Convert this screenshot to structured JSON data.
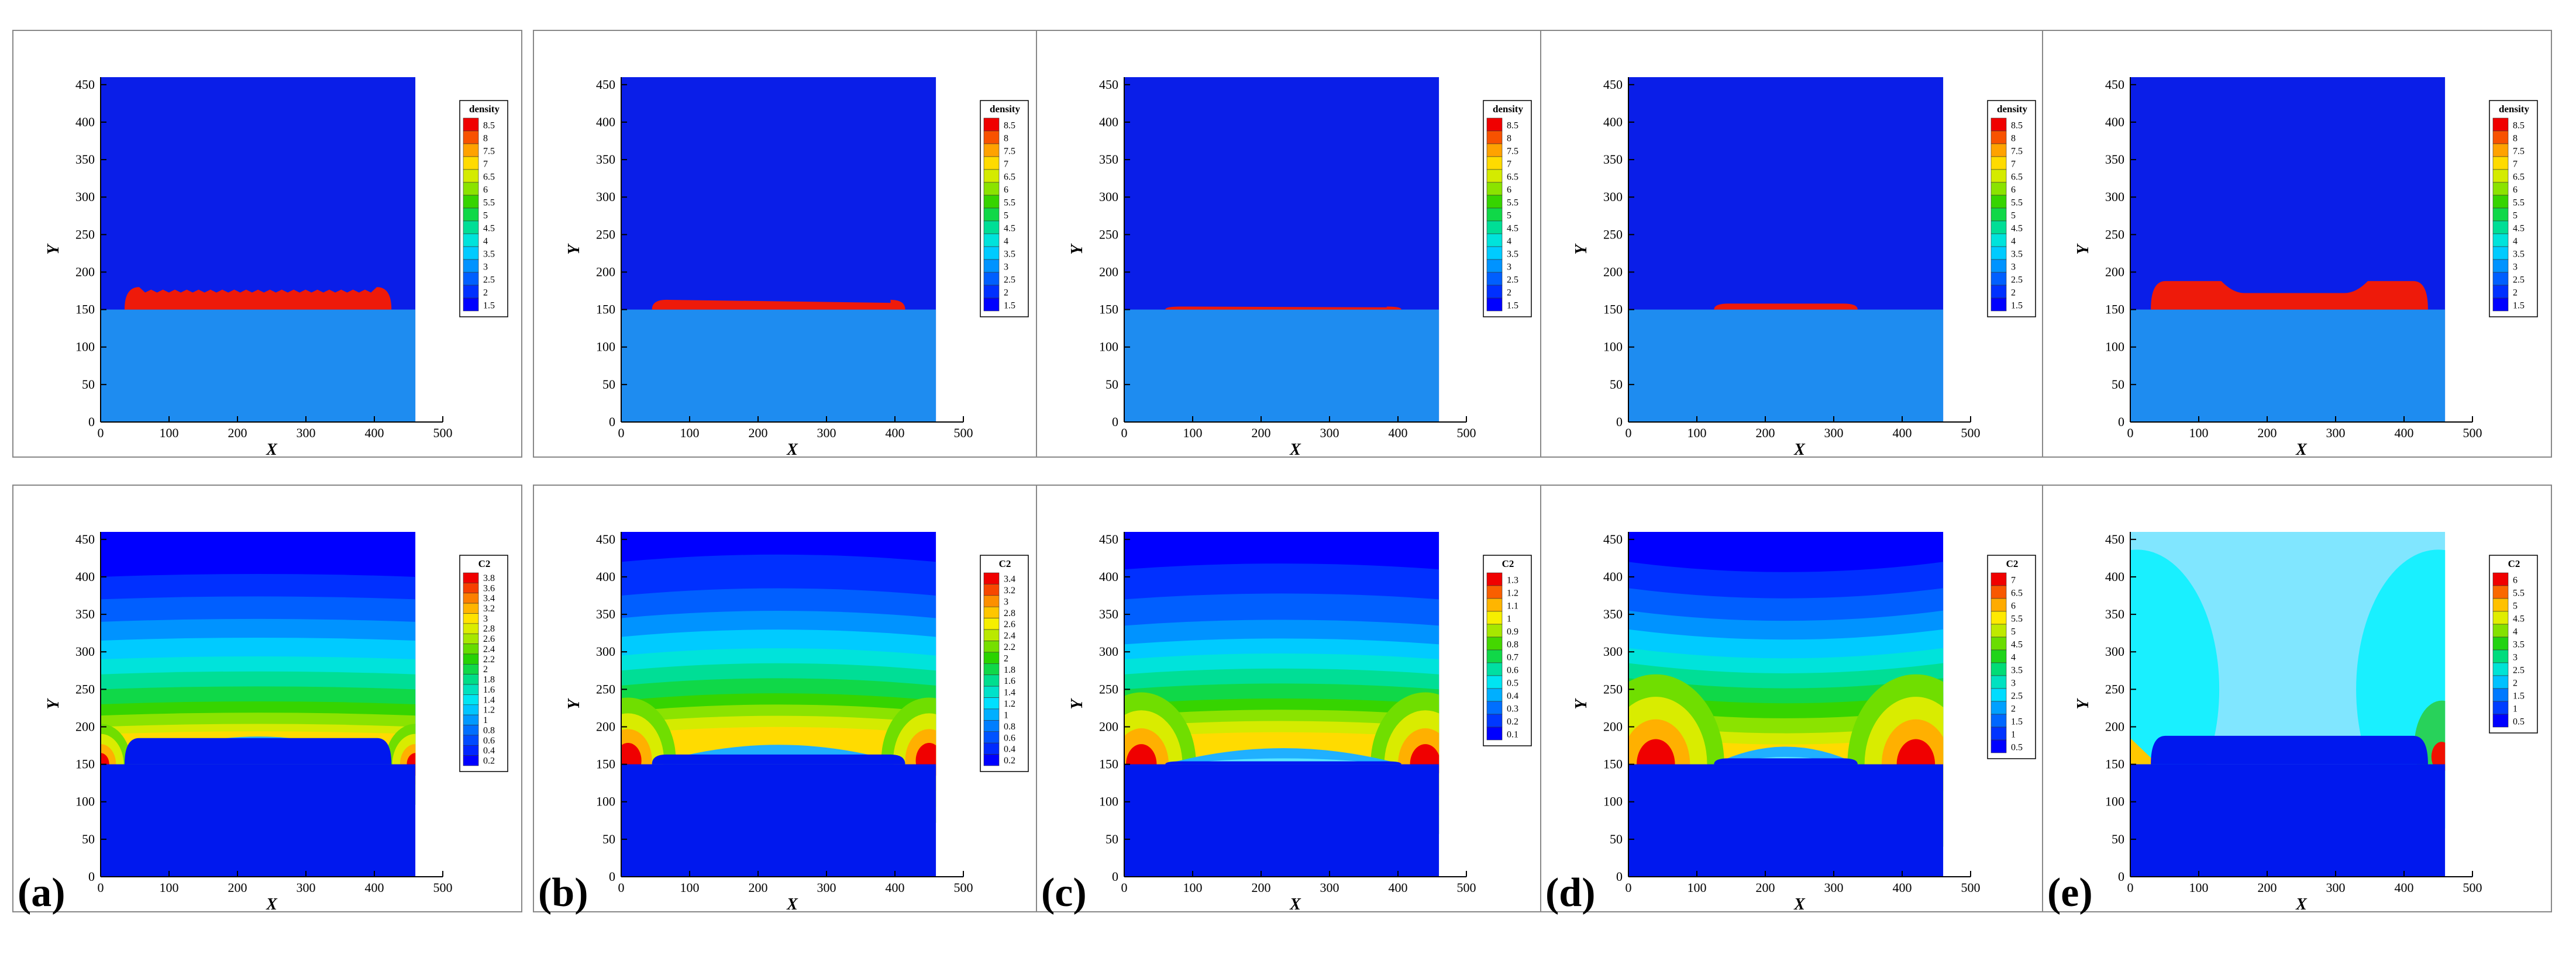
{
  "figure": {
    "panel_labels": [
      "(a)",
      "(b)",
      "(c)",
      "(d)",
      "(e)"
    ]
  },
  "chart_data": [
    {
      "type": "heatmap",
      "variable": "density",
      "panel": "a-top",
      "xlabel": "X",
      "ylabel": "Y",
      "xlim": [
        0,
        500
      ],
      "ylim": [
        0,
        460
      ],
      "domain_x": [
        0,
        460
      ],
      "xticks": [
        0,
        100,
        200,
        300,
        400,
        500
      ],
      "yticks": [
        0,
        50,
        100,
        150,
        200,
        250,
        300,
        350,
        400,
        450
      ],
      "legend_title": "density",
      "legend_levels": [
        8.5,
        8,
        7.5,
        7,
        6.5,
        6,
        5.5,
        5,
        4.5,
        4,
        3.5,
        3,
        2.5,
        2,
        1.5
      ],
      "interface_y": 150,
      "droplet": {
        "x_start": 35,
        "x_end": 425,
        "top_y": 175,
        "edge_y": 180,
        "rough": true
      }
    },
    {
      "type": "heatmap",
      "variable": "density",
      "panel": "b-top",
      "xlabel": "X",
      "ylabel": "Y",
      "xlim": [
        0,
        500
      ],
      "ylim": [
        0,
        460
      ],
      "domain_x": [
        0,
        460
      ],
      "xticks": [
        0,
        100,
        200,
        300,
        400,
        500
      ],
      "yticks": [
        0,
        50,
        100,
        150,
        200,
        250,
        300,
        350,
        400,
        450
      ],
      "legend_title": "density",
      "legend_levels": [
        8.5,
        8,
        7.5,
        7,
        6.5,
        6,
        5.5,
        5,
        4.5,
        4,
        3.5,
        3,
        2.5,
        2,
        1.5
      ],
      "interface_y": 150,
      "droplet": {
        "x_start": 45,
        "x_end": 415,
        "top_y": 159,
        "edge_y": 163,
        "rough": false
      }
    },
    {
      "type": "heatmap",
      "variable": "density",
      "panel": "c-top",
      "xlabel": "X",
      "ylabel": "Y",
      "xlim": [
        0,
        500
      ],
      "ylim": [
        0,
        460
      ],
      "domain_x": [
        0,
        460
      ],
      "xticks": [
        0,
        100,
        200,
        300,
        400,
        500
      ],
      "yticks": [
        0,
        50,
        100,
        150,
        200,
        250,
        300,
        350,
        400,
        450
      ],
      "legend_title": "density",
      "legend_levels": [
        8.5,
        8,
        7.5,
        7,
        6.5,
        6,
        5.5,
        5,
        4.5,
        4,
        3.5,
        3,
        2.5,
        2,
        1.5
      ],
      "interface_y": 150,
      "droplet": {
        "x_start": 60,
        "x_end": 405,
        "top_y": 153,
        "edge_y": 154,
        "rough": false
      }
    },
    {
      "type": "heatmap",
      "variable": "density",
      "panel": "d-top",
      "xlabel": "X",
      "ylabel": "Y",
      "xlim": [
        0,
        500
      ],
      "ylim": [
        0,
        460
      ],
      "domain_x": [
        0,
        460
      ],
      "xticks": [
        0,
        100,
        200,
        300,
        400,
        500
      ],
      "yticks": [
        0,
        50,
        100,
        150,
        200,
        250,
        300,
        350,
        400,
        450
      ],
      "legend_title": "density",
      "legend_levels": [
        8.5,
        8,
        7.5,
        7,
        6.5,
        6,
        5.5,
        5,
        4.5,
        4,
        3.5,
        3,
        2.5,
        2,
        1.5
      ],
      "interface_y": 150,
      "droplet": {
        "x_start": 125,
        "x_end": 335,
        "top_y": 158,
        "edge_y": 158,
        "rough": false
      }
    },
    {
      "type": "heatmap",
      "variable": "density",
      "panel": "e-top",
      "xlabel": "X",
      "ylabel": "Y",
      "xlim": [
        0,
        500
      ],
      "ylim": [
        0,
        460
      ],
      "domain_x": [
        0,
        460
      ],
      "xticks": [
        0,
        100,
        200,
        300,
        400,
        500
      ],
      "yticks": [
        0,
        50,
        100,
        150,
        200,
        250,
        300,
        350,
        400,
        450
      ],
      "legend_title": "density",
      "legend_levels": [
        8.5,
        8,
        7.5,
        7,
        6.5,
        6,
        5.5,
        5,
        4.5,
        4,
        3.5,
        3,
        2.5,
        2,
        1.5
      ],
      "interface_y": 150,
      "droplet": {
        "x_start": 30,
        "x_end": 435,
        "top_y": 172,
        "edge_y": 188,
        "rough": false,
        "bulges": true
      }
    },
    {
      "type": "heatmap",
      "variable": "C2",
      "panel": "a-bottom",
      "xlabel": "X",
      "ylabel": "Y",
      "xlim": [
        0,
        500
      ],
      "ylim": [
        0,
        460
      ],
      "domain_x": [
        0,
        460
      ],
      "xticks": [
        0,
        100,
        200,
        300,
        400,
        500
      ],
      "yticks": [
        0,
        50,
        100,
        150,
        200,
        250,
        300,
        350,
        400,
        450
      ],
      "legend_title": "C2",
      "legend_levels": [
        3.8,
        3.6,
        3.4,
        3.2,
        3,
        2.8,
        2.6,
        2.4,
        2.2,
        2,
        1.8,
        1.6,
        1.4,
        1.2,
        1,
        0.8,
        0.6,
        0.4,
        0.2
      ],
      "field": {
        "band_ys": [
          400,
          370,
          340,
          315,
          290,
          270,
          250,
          230,
          215,
          200,
          190,
          180
        ],
        "hump": 10,
        "hot_spots": [
          [
            0,
            150
          ],
          [
            460,
            150
          ]
        ],
        "hot_radius": 45,
        "dip_x": [
          35,
          425
        ],
        "dip_y": 185
      }
    },
    {
      "type": "heatmap",
      "variable": "C2",
      "panel": "b-bottom",
      "xlabel": "X",
      "ylabel": "Y",
      "xlim": [
        0,
        500
      ],
      "ylim": [
        0,
        460
      ],
      "domain_x": [
        0,
        460
      ],
      "xticks": [
        0,
        100,
        200,
        300,
        400,
        500
      ],
      "yticks": [
        0,
        50,
        100,
        150,
        200,
        250,
        300,
        350,
        400,
        450
      ],
      "legend_title": "C2",
      "legend_levels": [
        3.4,
        3.2,
        3,
        2.8,
        2.6,
        2.4,
        2.2,
        2,
        1.8,
        1.6,
        1.4,
        1.2,
        1,
        0.8,
        0.6,
        0.4,
        0.2
      ],
      "field": {
        "band_ys": [
          420,
          375,
          345,
          320,
          295,
          275,
          255,
          235,
          220,
          205,
          190,
          175
        ],
        "hump": 25,
        "hot_spots": [
          [
            10,
            155
          ],
          [
            450,
            155
          ]
        ],
        "hot_radius": 70,
        "dip_x": [
          45,
          415
        ],
        "dip_y": 163
      }
    },
    {
      "type": "heatmap",
      "variable": "C2",
      "panel": "c-bottom",
      "xlabel": "X",
      "ylabel": "Y",
      "xlim": [
        0,
        500
      ],
      "ylim": [
        0,
        460
      ],
      "domain_x": [
        0,
        460
      ],
      "xticks": [
        0,
        100,
        200,
        300,
        400,
        500
      ],
      "yticks": [
        0,
        50,
        100,
        150,
        200,
        250,
        300,
        350,
        400,
        450
      ],
      "legend_title": "C2",
      "legend_levels": [
        1.3,
        1.2,
        1.1,
        1,
        0.9,
        0.8,
        0.7,
        0.6,
        0.5,
        0.4,
        0.3,
        0.2,
        0.1
      ],
      "field": {
        "band_ys": [
          410,
          370,
          335,
          310,
          290,
          270,
          250,
          230,
          215,
          200,
          185,
          170
        ],
        "hump": 20,
        "hot_spots": [
          [
            25,
            150
          ],
          [
            440,
            150
          ]
        ],
        "hot_radius": 80,
        "dip_x": [
          60,
          405
        ],
        "dip_y": 154
      }
    },
    {
      "type": "heatmap",
      "variable": "C2",
      "panel": "d-bottom",
      "xlabel": "X",
      "ylabel": "Y",
      "xlim": [
        0,
        500
      ],
      "ylim": [
        0,
        460
      ],
      "domain_x": [
        0,
        460
      ],
      "xticks": [
        0,
        100,
        200,
        300,
        400,
        500
      ],
      "yticks": [
        0,
        50,
        100,
        150,
        200,
        250,
        300,
        350,
        400,
        450
      ],
      "legend_title": "C2",
      "legend_levels": [
        7,
        6.5,
        6,
        5.5,
        5,
        4.5,
        4,
        3.5,
        3,
        2.5,
        2,
        1.5,
        1,
        0.5
      ],
      "field": {
        "band_ys": [
          420,
          385,
          355,
          330,
          305,
          285,
          265,
          245,
          225,
          205,
          190,
          175
        ],
        "hump": -35,
        "hot_spots": [
          [
            40,
            150
          ],
          [
            420,
            150
          ]
        ],
        "hot_radius": 100,
        "dip_x": [
          125,
          335
        ],
        "dip_y": 158
      }
    },
    {
      "type": "heatmap",
      "variable": "C2",
      "panel": "e-bottom",
      "xlabel": "X",
      "ylabel": "Y",
      "xlim": [
        0,
        500
      ],
      "ylim": [
        0,
        460
      ],
      "domain_x": [
        0,
        460
      ],
      "xticks": [
        0,
        100,
        200,
        300,
        400,
        500
      ],
      "yticks": [
        0,
        50,
        100,
        150,
        200,
        250,
        300,
        350,
        400,
        450
      ],
      "legend_title": "C2",
      "legend_levels": [
        6,
        5.5,
        5,
        4.5,
        4,
        3.5,
        3,
        2.5,
        2,
        1.5,
        1,
        0.5
      ],
      "field": {
        "band_ys": [],
        "hump": 0,
        "hot_spots": [
          [
            460,
            150
          ]
        ],
        "hot_radius": 40,
        "dip_x": [
          30,
          435
        ],
        "dip_y": 188,
        "lobes": true
      }
    }
  ]
}
